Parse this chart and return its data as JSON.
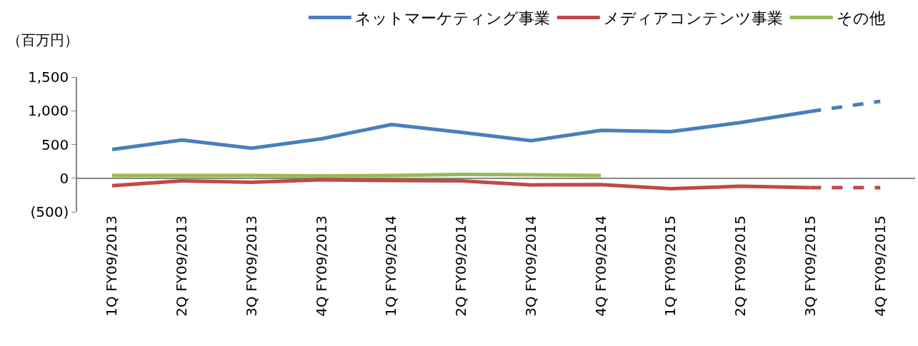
{
  "chart_data": {
    "type": "line",
    "ylabel": "（百万円）",
    "categories": [
      "1Q FY09/2013",
      "2Q FY09/2013",
      "3Q FY09/2013",
      "4Q FY09/2013",
      "1Q FY09/2014",
      "2Q FY09/2014",
      "3Q FY09/2014",
      "4Q FY09/2014",
      "1Q FY09/2015",
      "2Q FY09/2015",
      "3Q FY09/2015",
      "4Q FY09/2015"
    ],
    "series": [
      {
        "name": "ネットマーケティング事業",
        "color": "#4a7ebb",
        "values": [
          425,
          565,
          445,
          585,
          795,
          680,
          555,
          710,
          690,
          825,
          990,
          null
        ]
      },
      {
        "name": "メディアコンテンツ事業",
        "color": "#be4b48",
        "values": [
          -110,
          -40,
          -60,
          -25,
          -35,
          -40,
          -100,
          -95,
          -155,
          -120,
          -140,
          null
        ]
      },
      {
        "name": "その他",
        "color": "#98b954",
        "values": [
          40,
          40,
          40,
          35,
          40,
          55,
          50,
          40,
          null,
          null,
          null,
          null
        ]
      },
      {
        "color": "#4a7ebb",
        "line_style": "dashed",
        "values": [
          null,
          null,
          null,
          null,
          null,
          null,
          null,
          null,
          null,
          null,
          990,
          1140
        ]
      },
      {
        "color": "#be4b48",
        "line_style": "dashed",
        "values": [
          null,
          null,
          null,
          null,
          null,
          null,
          null,
          null,
          null,
          null,
          -140,
          -140
        ]
      }
    ],
    "ylim": [
      -500,
      1500
    ],
    "yticks": [
      {
        "value": -500,
        "label": "(500)"
      },
      {
        "value": 0,
        "label": "0"
      },
      {
        "value": 500,
        "label": "500"
      },
      {
        "value": 1000,
        "label": "1,000"
      },
      {
        "value": 1500,
        "label": "1,500"
      }
    ],
    "legend": "top",
    "line_style": "solid",
    "marker": "none"
  }
}
